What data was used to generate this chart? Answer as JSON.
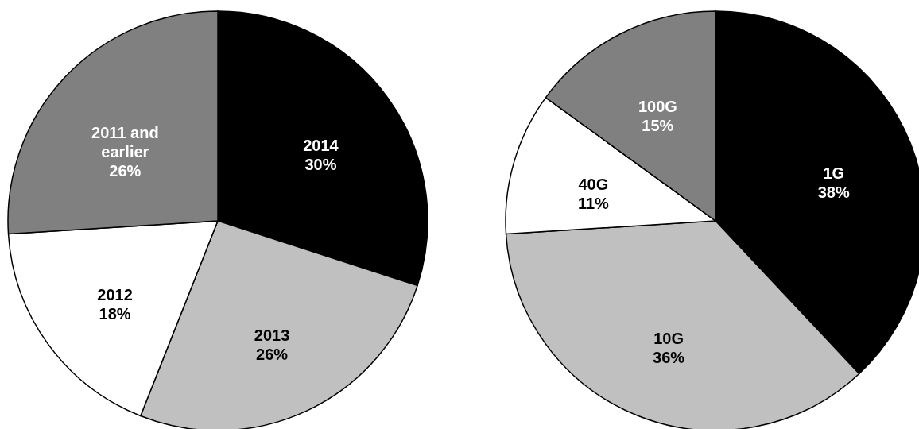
{
  "chart_data": [
    {
      "type": "pie",
      "categories": [
        "2014",
        "2013",
        "2012",
        "2011 and earlier"
      ],
      "values": [
        30,
        26,
        18,
        26
      ],
      "colors": [
        "#000000",
        "#c0c0c0",
        "#ffffff",
        "#808080"
      ],
      "value_labels": [
        "30%",
        "26%",
        "18%",
        "26%"
      ]
    },
    {
      "type": "pie",
      "categories": [
        "1G",
        "10G",
        "40G",
        "100G"
      ],
      "values": [
        38,
        36,
        11,
        15
      ],
      "colors": [
        "#000000",
        "#c0c0c0",
        "#ffffff",
        "#808080"
      ],
      "value_labels": [
        "38%",
        "36%",
        "11%",
        "15%"
      ]
    }
  ]
}
